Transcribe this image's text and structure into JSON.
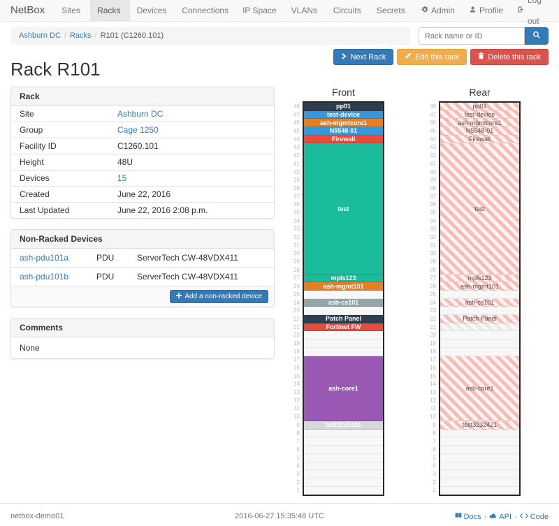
{
  "navbar": {
    "brand": "NetBox",
    "items": [
      "Sites",
      "Racks",
      "Devices",
      "Connections",
      "IP Space",
      "VLANs",
      "Circuits",
      "Secrets"
    ],
    "active_item": "Racks",
    "right_items": [
      {
        "label": "Admin",
        "icon": "gear-icon"
      },
      {
        "label": "Profile",
        "icon": "user-icon"
      },
      {
        "label": "Log out",
        "icon": "logout-icon"
      }
    ]
  },
  "breadcrumb": {
    "links": [
      "Ashburn DC",
      "Racks"
    ],
    "current": "R101 (C1260.101)"
  },
  "search": {
    "placeholder": "Rack name or ID",
    "icon": "search-icon"
  },
  "page": {
    "title": "Rack R101"
  },
  "actions": [
    {
      "label": "Next Rack",
      "style": "primary",
      "icon": "chevron-right-icon"
    },
    {
      "label": "Edit this rack",
      "style": "warning",
      "icon": "pencil-icon"
    },
    {
      "label": "Delete this rack",
      "style": "danger",
      "icon": "trash-icon"
    }
  ],
  "rack_panel": {
    "title": "Rack",
    "rows": [
      {
        "label": "Site",
        "value": "Ashburn DC",
        "link": true
      },
      {
        "label": "Group",
        "value": "Cage 1250",
        "link": true
      },
      {
        "label": "Facility ID",
        "value": "C1260.101",
        "link": false
      },
      {
        "label": "Height",
        "value": "48U",
        "link": false
      },
      {
        "label": "Devices",
        "value": "15",
        "link": true
      },
      {
        "label": "Created",
        "value": "June 22, 2016",
        "link": false
      },
      {
        "label": "Last Updated",
        "value": "June 22, 2016 2:08 p.m.",
        "link": false
      }
    ]
  },
  "nonracked_panel": {
    "title": "Non-Racked Devices",
    "rows": [
      {
        "name": "ash-pdu101a",
        "type": "PDU",
        "model": "ServerTech CW-48VDX411"
      },
      {
        "name": "ash-pdu101b",
        "type": "PDU",
        "model": "ServerTech CW-48VDX411"
      }
    ],
    "add_button": "Add a non-racked device"
  },
  "comments_panel": {
    "title": "Comments",
    "body": "None"
  },
  "elevations": {
    "front_title": "Front",
    "rear_title": "Rear",
    "units_total": 48,
    "colors": {
      "navy": "#2c3e50",
      "blue": "#3498db",
      "orange": "#e67e22",
      "red": "#e74c3c",
      "teal": "#1abc9c",
      "gray": "#95a5a6",
      "purple": "#9b59b6",
      "lightgray": "#d6d9dc",
      "rear_hatch": "#f8bcb7"
    },
    "devices": [
      {
        "name": "pp01",
        "top_unit": 48,
        "u_height": 1,
        "color": "#2c3e50",
        "rear": "hatched"
      },
      {
        "name": "test-device",
        "top_unit": 47,
        "u_height": 1,
        "color": "#3498db",
        "rear": "hatched"
      },
      {
        "name": "ash-mgmtcore1",
        "top_unit": 46,
        "u_height": 1,
        "color": "#e67e22",
        "rear": "hatched"
      },
      {
        "name": "N5548-01",
        "top_unit": 45,
        "u_height": 1,
        "color": "#3498db",
        "rear": "hatched"
      },
      {
        "name": "Firewall",
        "top_unit": 44,
        "u_height": 1,
        "color": "#e74c3c",
        "rear": "hatched"
      },
      {
        "name": "test",
        "top_unit": 43,
        "u_height": 16,
        "color": "#1abc9c",
        "rear": "hatched"
      },
      {
        "name": "mpls123",
        "top_unit": 27,
        "u_height": 1,
        "color": "#1abc9c",
        "rear": "hatched"
      },
      {
        "name": "ash-mgmt101",
        "top_unit": 26,
        "u_height": 1,
        "color": "#e67e22",
        "rear": "hatched"
      },
      {
        "name": "ash-cs101",
        "top_unit": 24,
        "u_height": 1,
        "color": "#95a5a6",
        "rear": "hatched"
      },
      {
        "name": "Patch Panel",
        "top_unit": 22,
        "u_height": 1,
        "color": "#2c3e50",
        "rear": "hatched"
      },
      {
        "name": "Fortinet FW",
        "top_unit": 21,
        "u_height": 1,
        "color": "#e74c3c",
        "rear": "ghost"
      },
      {
        "name": "ash-core1",
        "top_unit": 17,
        "u_height": 8,
        "color": "#9b59b6",
        "rear": "hatched"
      },
      {
        "name": "test3232421",
        "top_unit": 9,
        "u_height": 1,
        "color": "#d6d9dc",
        "rear": "hatched"
      }
    ]
  },
  "footer": {
    "hostname": "netbox-demo01",
    "timestamp": "2016-06-27 15:35:48 UTC",
    "links": [
      {
        "label": "Docs",
        "icon": "book-icon"
      },
      {
        "label": "API",
        "icon": "cloud-icon"
      },
      {
        "label": "Code",
        "icon": "code-icon"
      }
    ]
  }
}
